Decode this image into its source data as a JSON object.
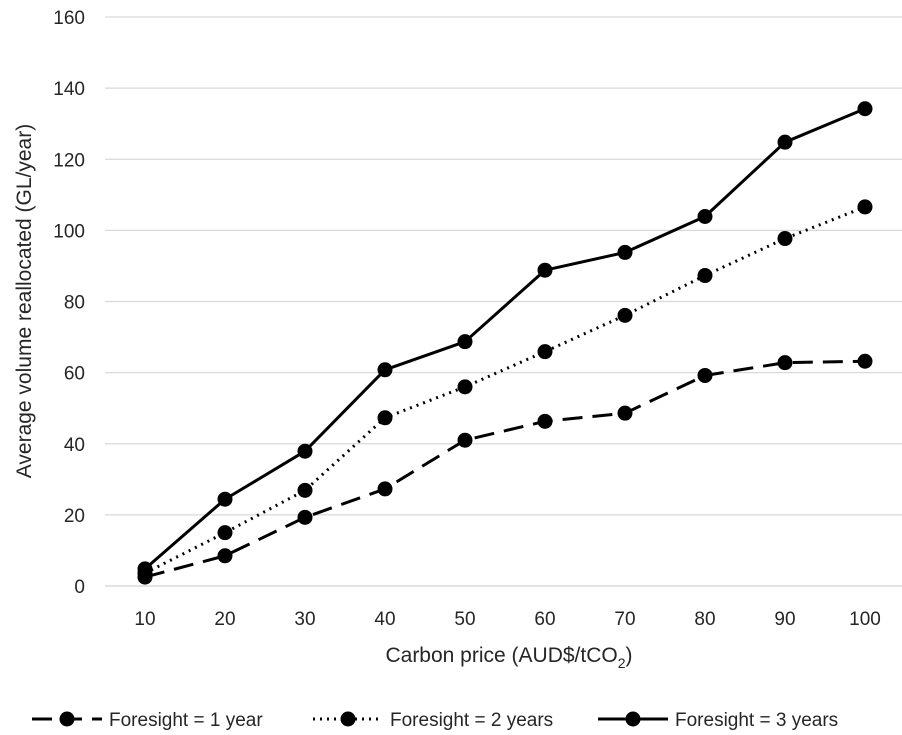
{
  "chart_data": {
    "type": "line",
    "x": [
      10,
      20,
      30,
      40,
      50,
      60,
      70,
      80,
      90,
      100
    ],
    "xlabel": "Carbon price (AUD$/tCO",
    "xlabel_subscript": "2",
    "xlabel_suffix": ")",
    "ylabel": "Average volume reallocated (GL/year)",
    "ylim": [
      0,
      160
    ],
    "yticks": [
      0,
      20,
      40,
      60,
      80,
      100,
      120,
      140,
      160
    ],
    "grid": "horizontal",
    "legend_position": "bottom",
    "series": [
      {
        "name": "Foresight = 1 year",
        "style": "dashed",
        "values": [
          2.5,
          8.5,
          19.3,
          27.3,
          41.0,
          46.3,
          48.6,
          59.2,
          62.8,
          63.2
        ]
      },
      {
        "name": "Foresight = 2 years",
        "style": "dotted",
        "values": [
          3.6,
          15.0,
          26.9,
          47.3,
          56.0,
          65.9,
          76.1,
          87.3,
          97.7,
          106.6
        ]
      },
      {
        "name": "Foresight = 3 years",
        "style": "solid",
        "values": [
          4.8,
          24.4,
          37.9,
          60.8,
          68.7,
          88.8,
          93.8,
          103.9,
          124.8,
          134.2
        ]
      }
    ],
    "colors": {
      "line": "#000000",
      "grid": "#d9d9d9",
      "text": "#262626"
    }
  }
}
